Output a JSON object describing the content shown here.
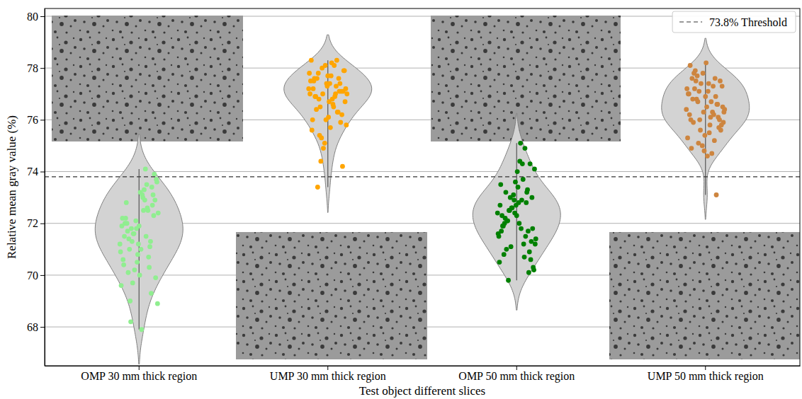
{
  "chart_data": {
    "type": "violin",
    "x_label": "Test object different slices",
    "y_label": "Relative mean gray value (%)",
    "categories": [
      "OMP 30 mm thick region",
      "UMP 30 mm thick region",
      "OMP 50 mm thick region",
      "UMP 50 mm thick region"
    ],
    "colors": [
      "#90ee90",
      "#ffa500",
      "#008000",
      "#cd853f"
    ],
    "values": [
      [
        71.2,
        72.5,
        70.1,
        73.4,
        71.8,
        69.6,
        72.9,
        71.0,
        73.1,
        70.8,
        72.2,
        71.5,
        68.2,
        73.9,
        71.9,
        70.4,
        72.6,
        71.3,
        69.9,
        73.2,
        72.0,
        70.7,
        71.6,
        73.6,
        67.9,
        72.8,
        71.1,
        70.2,
        72.4,
        73.0,
        71.7,
        69.3,
        72.1,
        70.9,
        73.3,
        71.4,
        72.7,
        70.5,
        71.9,
        74.1,
        69.0,
        72.3,
        71.2,
        70.6,
        73.5,
        71.8,
        72.9,
        70.0,
        71.5,
        72.5,
        69.7,
        73.7,
        71.0,
        72.2,
        70.3,
        71.6,
        68.9,
        73.1,
        72.0,
        71.3
      ],
      [
        77.2,
        76.8,
        77.6,
        75.9,
        78.1,
        77.0,
        76.5,
        77.8,
        76.2,
        77.4,
        78.3,
        76.9,
        75.4,
        77.1,
        77.7,
        76.0,
        77.3,
        74.4,
        77.9,
        76.7,
        77.5,
        76.3,
        78.0,
        77.2,
        75.7,
        76.9,
        77.6,
        74.9,
        77.0,
        78.2,
        76.4,
        77.4,
        75.1,
        77.8,
        76.6,
        73.4,
        77.1,
        76.0,
        77.5,
        78.1,
        76.8,
        74.2,
        77.3,
        75.6,
        77.0,
        76.5,
        77.9,
        76.1,
        77.2,
        78.3,
        75.3,
        76.7,
        77.4,
        77.6,
        76.3,
        77.0,
        75.8,
        77.7,
        76.9,
        77.1
      ],
      [
        72.4,
        71.8,
        73.2,
        70.9,
        72.9,
        71.5,
        74.3,
        72.1,
        70.6,
        73.6,
        72.7,
        71.2,
        69.8,
        73.0,
        72.3,
        71.7,
        74.9,
        72.5,
        70.3,
        73.4,
        71.9,
        72.8,
        71.1,
        74.1,
        72.0,
        70.8,
        73.3,
        72.6,
        71.4,
        75.1,
        72.2,
        70.1,
        73.1,
        71.6,
        72.9,
        71.0,
        74.3,
        72.4,
        70.5,
        73.7,
        72.1,
        71.3,
        72.7,
        73.5,
        70.7,
        72.5,
        71.8,
        74.0,
        72.3,
        71.5,
        73.0,
        70.2,
        72.8,
        71.9,
        73.2,
        72.6,
        71.2,
        74.4,
        72.0,
        71.7
      ],
      [
        76.4,
        75.8,
        77.2,
        76.1,
        77.8,
        75.3,
        76.7,
        77.5,
        76.0,
        74.8,
        77.0,
        76.3,
        77.7,
        75.6,
        76.9,
        78.1,
        76.2,
        75.1,
        77.3,
        76.5,
        74.9,
        77.6,
        76.0,
        75.9,
        77.1,
        76.8,
        73.1,
        77.4,
        76.4,
        75.5,
        77.8,
        76.6,
        75.0,
        77.2,
        76.1,
        77.9,
        75.7,
        76.3,
        77.0,
        74.7,
        76.8,
        77.5,
        75.4,
        76.2,
        77.3,
        76.7,
        75.8,
        78.2,
        76.0,
        75.2,
        77.1,
        76.5,
        74.6,
        77.6,
        76.9,
        75.6,
        76.3,
        77.4,
        75.9,
        76.6
      ]
    ],
    "threshold": {
      "value": 73.8,
      "label": "73.8% Threshold",
      "line_style": "dashed"
    },
    "ylim": [
      66.5,
      80.3
    ],
    "yticks": [
      68,
      70,
      72,
      74,
      76,
      78,
      80
    ],
    "grid": "y",
    "legend": "top-right"
  }
}
